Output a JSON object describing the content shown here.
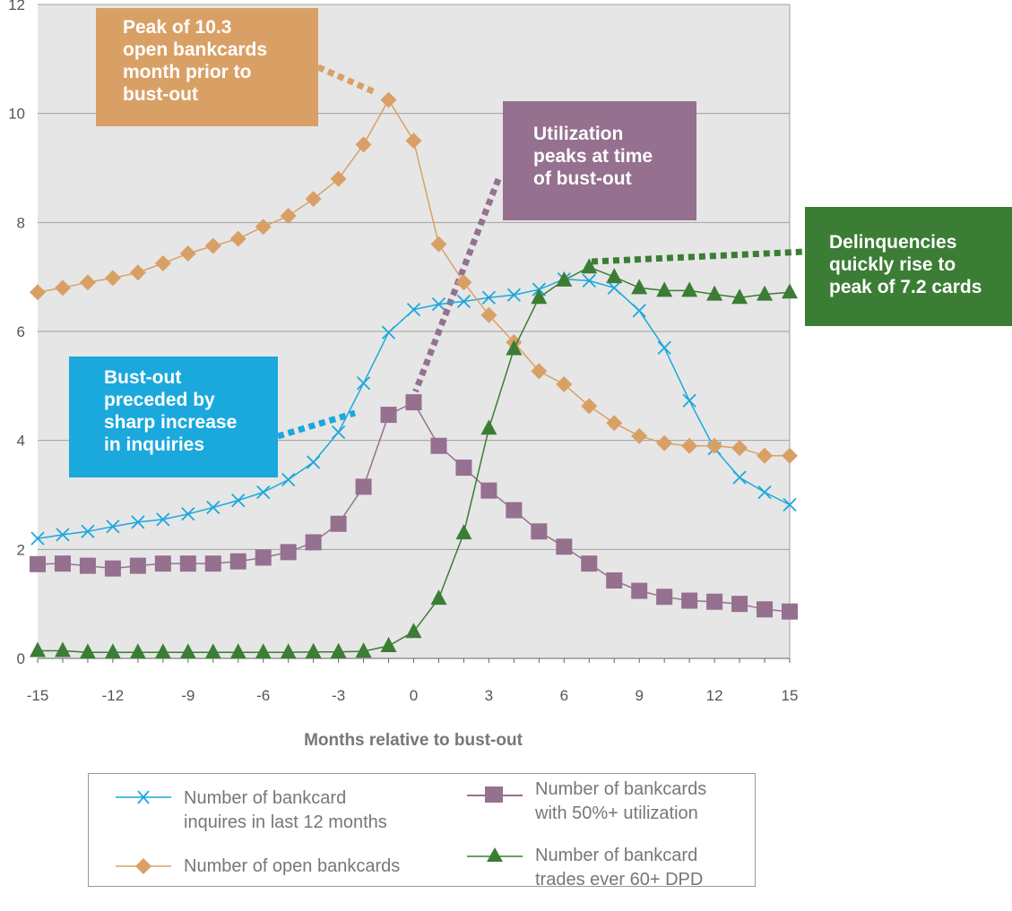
{
  "chart_data": {
    "type": "line",
    "xlabel": "Months relative to bust-out",
    "ylabel": "",
    "xlim": [
      -15,
      15
    ],
    "ylim": [
      0,
      12
    ],
    "x_ticks": [
      -15,
      -12,
      -9,
      -6,
      -3,
      0,
      3,
      6,
      9,
      12,
      15
    ],
    "y_ticks": [
      0,
      2,
      4,
      6,
      8,
      10,
      12
    ],
    "grid": "horizontal",
    "x": [
      -15,
      -14,
      -13,
      -12,
      -11,
      -10,
      -9,
      -8,
      -7,
      -6,
      -5,
      -4,
      -3,
      -2,
      -1,
      0,
      1,
      2,
      3,
      4,
      5,
      6,
      7,
      8,
      9,
      10,
      11,
      12,
      13,
      14,
      15
    ],
    "series": [
      {
        "name": "Number of bankcard inquires in last 12 months",
        "color": "#1ba8dc",
        "marker": "x",
        "values": [
          2.2,
          2.27,
          2.33,
          2.42,
          2.5,
          2.55,
          2.65,
          2.77,
          2.9,
          3.05,
          3.28,
          3.6,
          4.15,
          5.05,
          5.98,
          6.4,
          6.5,
          6.55,
          6.62,
          6.67,
          6.77,
          6.96,
          6.93,
          6.8,
          6.38,
          5.7,
          4.73,
          3.85,
          3.32,
          3.05,
          2.82
        ]
      },
      {
        "name": "Number of open bankcards",
        "color": "#d9a066",
        "marker": "diamond",
        "values": [
          6.72,
          6.8,
          6.9,
          6.98,
          7.08,
          7.25,
          7.43,
          7.57,
          7.7,
          7.92,
          8.12,
          8.43,
          8.8,
          9.43,
          10.25,
          9.5,
          7.6,
          6.9,
          6.3,
          5.8,
          5.27,
          5.03,
          4.63,
          4.32,
          4.08,
          3.95,
          3.9,
          3.9,
          3.86,
          3.72,
          3.72
        ]
      },
      {
        "name": "Number of bankcards with 50%+ utilization",
        "color": "#95708f",
        "marker": "square",
        "values": [
          1.73,
          1.74,
          1.7,
          1.65,
          1.7,
          1.74,
          1.74,
          1.74,
          1.78,
          1.85,
          1.95,
          2.13,
          2.47,
          3.15,
          4.47,
          4.7,
          3.9,
          3.5,
          3.08,
          2.72,
          2.33,
          2.05,
          1.74,
          1.43,
          1.24,
          1.13,
          1.06,
          1.04,
          1.0,
          0.9,
          0.86
        ]
      },
      {
        "name": "Number of bankcard trades ever 60+ DPD",
        "color": "#3b7d34",
        "marker": "triangle",
        "values": [
          0.14,
          0.14,
          0.11,
          0.11,
          0.11,
          0.11,
          0.11,
          0.11,
          0.11,
          0.11,
          0.11,
          0.12,
          0.12,
          0.13,
          0.23,
          0.49,
          1.1,
          2.3,
          4.22,
          5.68,
          6.62,
          6.94,
          7.18,
          7.0,
          6.8,
          6.75,
          6.75,
          6.68,
          6.62,
          6.68,
          6.72
        ]
      }
    ],
    "annotations": [
      {
        "text": "Peak of 10.3\nopen bankcards\nmonth prior to\nbust-out",
        "color": "#d9a066"
      },
      {
        "text": "Utilization\npeaks at time\nof bust-out",
        "color": "#95708f"
      },
      {
        "text": "Delinquencies\nquickly rise to\npeak of 7.2 cards",
        "color": "#3b7d34"
      },
      {
        "text": "Bust-out\npreceded by\nsharp increase\nin inquiries",
        "color": "#1ba8dc"
      }
    ],
    "legend": {
      "placement": "bottom",
      "items": [
        {
          "label": "Number of bankcard\ninquires in last 12 months"
        },
        {
          "label": "Number of bankcards\nwith 50%+ utilization"
        },
        {
          "label": "Number of open bankcards"
        },
        {
          "label": "Number of bankcard\ntrades ever 60+ DPD"
        }
      ]
    }
  }
}
